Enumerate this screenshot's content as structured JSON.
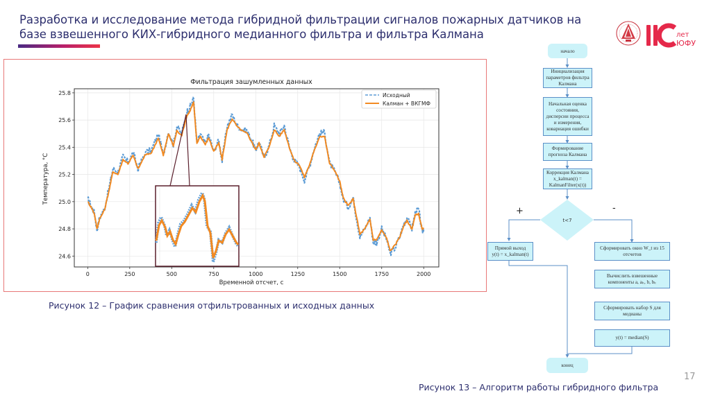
{
  "slide": {
    "title_line1": "Разработка и исследование метода гибридной фильтрации сигналов пожарных датчиков на",
    "title_line2": "базе взвешенного КИХ-гибридного медианного фильтра и фильтра Калмана",
    "page_number": "17",
    "accent_gradient": [
      "#4a2a83",
      "#b8206a",
      "#ec3448"
    ],
    "logo": {
      "university_emblem": "university-emblem",
      "anniversary_number": "110",
      "anniversary_line1": "лет",
      "anniversary_line2": "ЮФУ",
      "color": "#e5294a"
    }
  },
  "figure12": {
    "caption": "Рисунок 12 – График сравнения отфильтрованных и исходных данных"
  },
  "figure13": {
    "caption": "Рисунок 13 – Алгоритм работы гибридного фильтра"
  },
  "chart_data": {
    "type": "line",
    "title": "Фильтрация зашумленных данных",
    "xlabel": "Временной отсчет, с",
    "ylabel": "Температура, °С",
    "xlim": [
      -80,
      2090
    ],
    "ylim": [
      24.52,
      25.83
    ],
    "x_ticks": [
      "0",
      "250",
      "500",
      "750",
      "1000",
      "1250",
      "1500",
      "1750",
      "2000"
    ],
    "y_ticks": [
      "24.6",
      "24.8",
      "25.0",
      "25.2",
      "25.4",
      "25.6",
      "25.8"
    ],
    "grid": true,
    "legend_position": "upper right",
    "series": [
      {
        "name": "Исходный",
        "style": "dashed",
        "color": "#5b9bd5",
        "x": [
          0,
          20,
          40,
          55,
          70,
          100,
          130,
          150,
          180,
          210,
          240,
          270,
          300,
          340,
          380,
          420,
          450,
          480,
          510,
          530,
          560,
          590,
          610,
          630,
          650,
          670,
          700,
          720,
          750,
          780,
          800,
          830,
          860,
          890,
          920,
          950,
          980,
          1000,
          1020,
          1050,
          1080,
          1110,
          1140,
          1170,
          1200,
          1230,
          1260,
          1290,
          1320,
          1350,
          1380,
          1410,
          1440,
          1470,
          1500,
          1520,
          1550,
          1580,
          1600,
          1620,
          1650,
          1680,
          1700,
          1720,
          1750,
          1780,
          1800,
          1830,
          1860,
          1880,
          1900,
          1930,
          1950,
          1970,
          1990,
          2000
        ],
        "values": [
          25.02,
          24.97,
          24.92,
          24.79,
          24.88,
          24.95,
          25.12,
          25.24,
          25.22,
          25.33,
          25.29,
          25.36,
          25.24,
          25.36,
          25.38,
          25.5,
          25.34,
          25.52,
          25.42,
          25.55,
          25.5,
          25.66,
          25.7,
          25.76,
          25.42,
          25.5,
          25.42,
          25.49,
          25.37,
          25.45,
          25.3,
          25.56,
          25.64,
          25.56,
          25.53,
          25.52,
          25.44,
          25.38,
          25.44,
          25.32,
          25.41,
          25.56,
          25.5,
          25.56,
          25.4,
          25.3,
          25.26,
          25.16,
          25.26,
          25.4,
          25.5,
          25.51,
          25.28,
          25.22,
          25.14,
          25.02,
          24.96,
          25.03,
          24.88,
          24.74,
          24.8,
          24.88,
          24.7,
          24.7,
          24.8,
          24.72,
          24.62,
          24.66,
          24.75,
          24.83,
          24.88,
          24.8,
          24.92,
          24.94,
          24.78,
          24.8
        ]
      },
      {
        "name": "Калман + ВКГМФ",
        "style": "solid",
        "color": "#f28a22",
        "x": [
          0,
          20,
          40,
          55,
          70,
          100,
          130,
          150,
          180,
          210,
          240,
          270,
          300,
          340,
          380,
          420,
          450,
          480,
          510,
          530,
          560,
          590,
          610,
          630,
          650,
          670,
          700,
          720,
          750,
          780,
          800,
          830,
          860,
          890,
          920,
          950,
          980,
          1000,
          1020,
          1050,
          1080,
          1110,
          1140,
          1170,
          1200,
          1230,
          1260,
          1290,
          1320,
          1350,
          1380,
          1410,
          1440,
          1470,
          1500,
          1520,
          1550,
          1580,
          1600,
          1620,
          1650,
          1680,
          1700,
          1720,
          1750,
          1780,
          1800,
          1830,
          1860,
          1880,
          1900,
          1930,
          1950,
          1970,
          1990,
          2000
        ],
        "values": [
          25.0,
          24.96,
          24.91,
          24.8,
          24.87,
          24.94,
          25.1,
          25.22,
          25.2,
          25.31,
          25.28,
          25.34,
          25.24,
          25.34,
          25.36,
          25.47,
          25.34,
          25.5,
          25.41,
          25.52,
          25.49,
          25.63,
          25.67,
          25.73,
          25.43,
          25.48,
          25.42,
          25.47,
          25.37,
          25.43,
          25.31,
          25.53,
          25.61,
          25.55,
          25.52,
          25.5,
          25.43,
          25.38,
          25.43,
          25.33,
          25.4,
          25.53,
          25.48,
          25.53,
          25.4,
          25.3,
          25.27,
          25.18,
          25.27,
          25.38,
          25.48,
          25.48,
          25.28,
          25.23,
          25.15,
          25.03,
          24.97,
          25.02,
          24.89,
          24.76,
          24.8,
          24.87,
          24.72,
          24.72,
          24.79,
          24.73,
          24.64,
          24.68,
          24.75,
          24.82,
          24.86,
          24.8,
          24.9,
          24.91,
          24.8,
          24.8
        ]
      }
    ],
    "inset": {
      "zoom_of_x_range": [
        590,
        640
      ],
      "border_color": "#6b2b3a"
    }
  },
  "flowchart": {
    "nodes": {
      "start": "начало",
      "init": "Инициализация параметров фильтра Калмана",
      "initial_estimate": "Начальная оценка состояния, дисперсии процесса и измерения, ковариация ошибки",
      "predict": "Формирование прогноза Калмана",
      "correct_line1": "Коррекция Калмана",
      "correct_line2": "x_kalman(t) =",
      "correct_line3": "KalmanFilter(x(t))",
      "decision": "t<7",
      "direct_output_line1": "Прямой выход",
      "direct_output_line2": "y(t) = x_kalman(t)",
      "window": "Сформировать окно W_t из 15 отсчетов",
      "weights": "Вычислить взвешенные компоненты a, aₖ, b, bₖ",
      "median_set": "Сформировать набор S для медианы",
      "median": "y(t) = median(S)",
      "end": "конец"
    },
    "branch_yes": "+",
    "branch_no": "-",
    "fill_color": "#ccf3f9",
    "line_color": "#5b8fc7"
  }
}
